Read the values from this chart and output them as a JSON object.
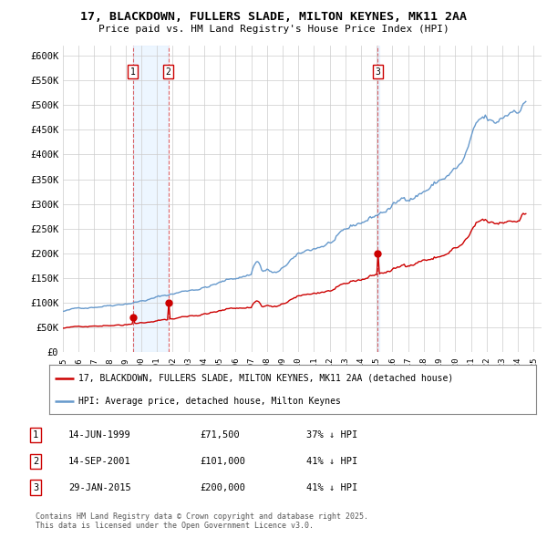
{
  "title": "17, BLACKDOWN, FULLERS SLADE, MILTON KEYNES, MK11 2AA",
  "subtitle": "Price paid vs. HM Land Registry's House Price Index (HPI)",
  "legend_line1": "17, BLACKDOWN, FULLERS SLADE, MILTON KEYNES, MK11 2AA (detached house)",
  "legend_line2": "HPI: Average price, detached house, Milton Keynes",
  "footer": "Contains HM Land Registry data © Crown copyright and database right 2025.\nThis data is licensed under the Open Government Licence v3.0.",
  "sale_year_floats": [
    1999.46,
    2001.71,
    2015.07
  ],
  "sale_prices": [
    71500,
    101000,
    200000
  ],
  "sale_labels": [
    "1",
    "2",
    "3"
  ],
  "table_rows": [
    [
      "1",
      "14-JUN-1999",
      "£71,500",
      "37% ↓ HPI"
    ],
    [
      "2",
      "14-SEP-2001",
      "£101,000",
      "41% ↓ HPI"
    ],
    [
      "3",
      "29-JAN-2015",
      "£200,000",
      "41% ↓ HPI"
    ]
  ],
  "red_color": "#cc0000",
  "blue_color": "#6699cc",
  "shade_color": "#ddeeff",
  "ylim": [
    0,
    620000
  ],
  "xlim": [
    1995.0,
    2025.5
  ],
  "yticks": [
    0,
    50000,
    100000,
    150000,
    200000,
    250000,
    300000,
    350000,
    400000,
    450000,
    500000,
    550000,
    600000
  ],
  "ytick_labels": [
    "£0",
    "£50K",
    "£100K",
    "£150K",
    "£200K",
    "£250K",
    "£300K",
    "£350K",
    "£400K",
    "£450K",
    "£500K",
    "£550K",
    "£600K"
  ],
  "xtick_years": [
    1995,
    1996,
    1997,
    1998,
    1999,
    2000,
    2001,
    2002,
    2003,
    2004,
    2005,
    2006,
    2007,
    2008,
    2009,
    2010,
    2011,
    2012,
    2013,
    2014,
    2015,
    2016,
    2017,
    2018,
    2019,
    2020,
    2021,
    2022,
    2023,
    2024,
    2025
  ],
  "background_color": "#ffffff",
  "grid_color": "#cccccc"
}
